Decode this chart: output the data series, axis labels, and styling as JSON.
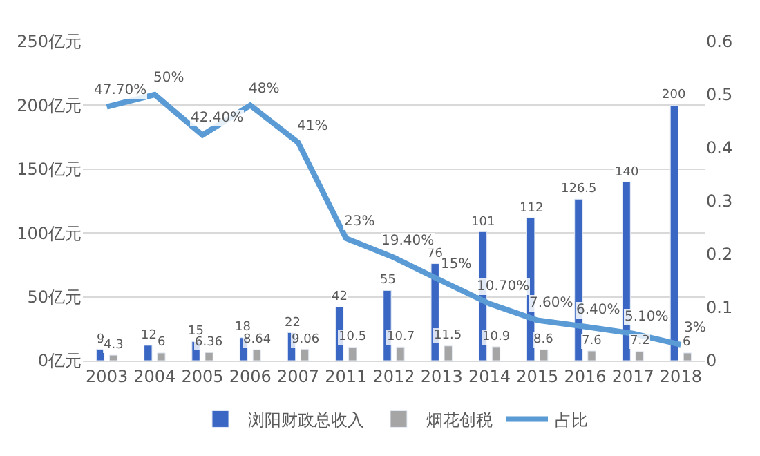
{
  "chart_data": {
    "type": "bar",
    "categories": [
      "2003",
      "2004",
      "2005",
      "2006",
      "2007",
      "2011",
      "2012",
      "2013",
      "2014",
      "2015",
      "2016",
      "2017",
      "2018"
    ],
    "series": [
      {
        "name": "浏阳财政总收入",
        "color": "#3a67c4",
        "values": [
          9,
          12,
          15,
          18,
          22,
          42,
          55,
          76,
          101,
          112,
          126.5,
          140,
          200
        ]
      },
      {
        "name": "烟花创税",
        "color": "#a5a5a5",
        "values": [
          4.3,
          6,
          6.36,
          8.64,
          9.06,
          10.5,
          10.7,
          11.5,
          10.9,
          8.6,
          7.6,
          7.2,
          6
        ]
      },
      {
        "name": "占比",
        "type": "line",
        "axis": "y2",
        "color": "#5b9bd5",
        "values": [
          0.477,
          0.5,
          0.424,
          0.48,
          0.41,
          0.23,
          0.194,
          0.15,
          0.107,
          0.076,
          0.064,
          0.051,
          0.03
        ],
        "value_labels": [
          "47.70%",
          "50%",
          "42.40%",
          "48%",
          "41%",
          "23%",
          "19.40%",
          "15%",
          "10.70%",
          "7.60%",
          "6.40%",
          "5.10%",
          "3%"
        ]
      }
    ],
    "data_labels": true,
    "ylim": [
      0,
      250
    ],
    "yticks": [
      {
        "value": 0,
        "label": "0亿元"
      },
      {
        "value": 50,
        "label": "50亿元"
      },
      {
        "value": 100,
        "label": "100亿元"
      },
      {
        "value": 150,
        "label": "150亿元"
      },
      {
        "value": 200,
        "label": "200亿元"
      },
      {
        "value": 250,
        "label": "250亿元"
      }
    ],
    "y2lim": [
      0,
      0.6
    ],
    "y2ticks": [
      0,
      0.1,
      0.2,
      0.3,
      0.4,
      0.5,
      0.6
    ],
    "grid": "y",
    "legend": "bottom",
    "marker": "none",
    "line_style": "solid"
  }
}
